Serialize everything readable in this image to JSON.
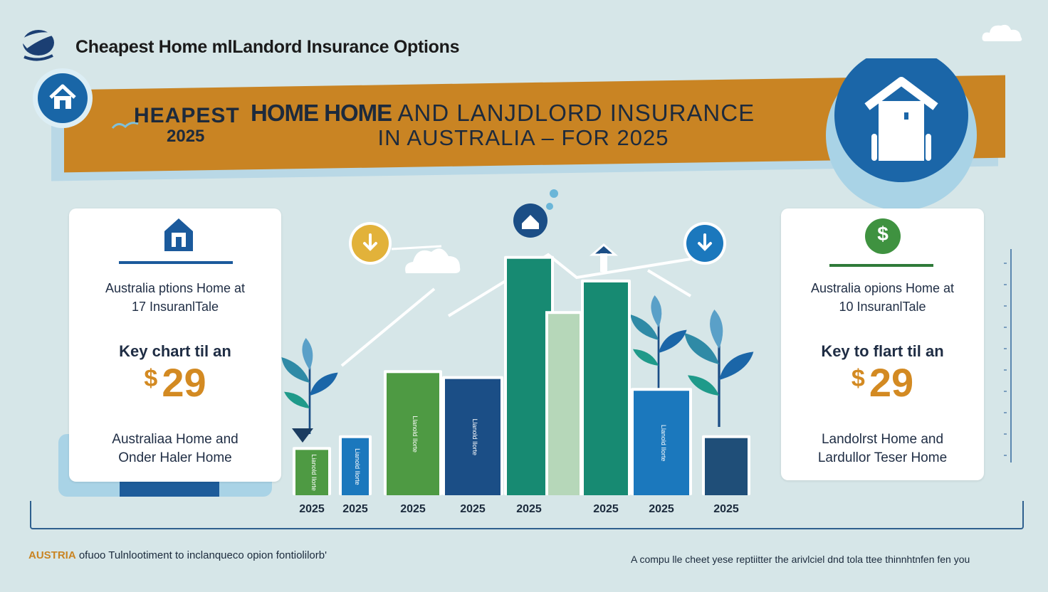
{
  "header": {
    "top_title": "Cheapest Home mlLandord Insurance Options",
    "banner_small": "HEAPEST",
    "banner_year": "2025",
    "banner_line1_bold": "HOME HOME",
    "banner_line1_rest": " AND  LANJDLORD INSURANCE",
    "banner_line2": "IN AUSTRALIA – FOR 2025"
  },
  "left_card": {
    "line1": "Australia ptions Home at",
    "line2": "17 InsuranlTale",
    "line3": "Key chart til an",
    "price_symbol": "$",
    "price": "29",
    "line5": "Australiaa Home and",
    "line6": "Onder Haler Home"
  },
  "right_card": {
    "line1": "Australia opions Home at",
    "line2": "10 InsuranlTale",
    "line3": "Key to flart til an",
    "price_symbol": "$",
    "price": "29",
    "line5": "Landolrst Home and",
    "line6": "Lardullor Teser Home",
    "icon": "$"
  },
  "chart_data": {
    "type": "bar",
    "categories": [
      "2025",
      "2025",
      "2025",
      "2025",
      "2025",
      "2025",
      "2025",
      "2025"
    ],
    "values": [
      23,
      29,
      62,
      59,
      120,
      108,
      53,
      29
    ],
    "extra_bar": {
      "after_index": 4,
      "value": 92
    },
    "ylim": [
      0,
      130
    ],
    "bar_labels": [
      "Lianold Ilorte",
      "Lianold Ilorte",
      "Llanold Ilorte",
      "Llanold Ilorte",
      "",
      "",
      "Llanold Ilorte",
      ""
    ],
    "colors": {
      "green": "#4e9a43",
      "blue": "#1b78bd",
      "navy": "#1b4e86",
      "teal": "#178a72",
      "pale": "#b6d7b9",
      "dark": "#1f4e78"
    },
    "bar_colors": [
      "green",
      "blue",
      "green",
      "navy",
      "teal",
      "teal",
      "blue",
      "dark"
    ],
    "icons": [
      "down-arrow-icon",
      "house-icon",
      "up-arrow-icon",
      "down-arrow-icon"
    ],
    "xlabel": "",
    "ylabel": "",
    "grid": false
  },
  "footer": {
    "brand": "AUSTRIA",
    "brand_small": "ofuoo",
    "left_text": "Tulnlootiment to inclanqueco  opion fontiolilorb'",
    "right_text": "A compu lle cheet yese reptiitter the arivlciel dnd tola ttee thinnhtnfen fen you"
  }
}
